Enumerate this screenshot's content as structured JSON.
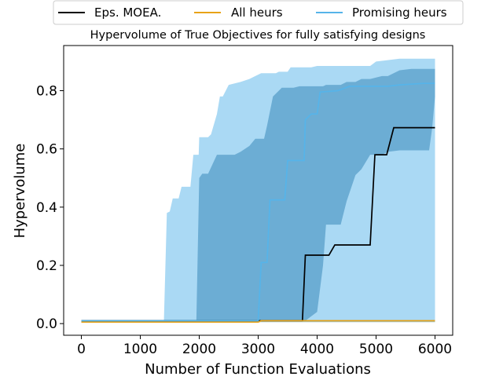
{
  "chart_data": {
    "type": "line",
    "title": "Hypervolume of True Objectives for fully satisfying designs",
    "xlabel": "Number of Function Evaluations",
    "ylabel": "Hypervolume",
    "xlim": [
      -300,
      6300
    ],
    "ylim": [
      -0.04,
      0.955
    ],
    "x_ticks": [
      0,
      1000,
      2000,
      3000,
      4000,
      5000,
      6000
    ],
    "y_ticks": [
      0.0,
      0.2,
      0.4,
      0.6,
      0.8
    ],
    "x_tick_labels": [
      "0",
      "1000",
      "2000",
      "3000",
      "4000",
      "5000",
      "6000"
    ],
    "y_tick_labels": [
      "0.0",
      "0.2",
      "0.4",
      "0.6",
      "0.8"
    ],
    "grid": false,
    "legend": {
      "placement": "top, outside plot"
    },
    "series": [
      {
        "name": "Eps. MOEA.",
        "color": "#000000",
        "band_color": "#2e6a93",
        "mean": [
          [
            0,
            0.01
          ],
          [
            3750,
            0.01
          ],
          [
            3800,
            0.235
          ],
          [
            4200,
            0.235
          ],
          [
            4300,
            0.27
          ],
          [
            4900,
            0.27
          ],
          [
            4980,
            0.58
          ],
          [
            5180,
            0.58
          ],
          [
            5300,
            0.673
          ],
          [
            6000,
            0.673
          ]
        ],
        "band": [
          [
            0,
            0.005,
            0.01
          ],
          [
            1950,
            0.005,
            0.01
          ],
          [
            2000,
            0.5,
            0.01
          ],
          [
            2050,
            0.515,
            0.01
          ],
          [
            2150,
            0.515,
            0.01
          ],
          [
            2300,
            0.58,
            0.01
          ],
          [
            2600,
            0.58,
            0.01
          ],
          [
            2700,
            0.59,
            0.01
          ],
          [
            2850,
            0.61,
            0.01
          ],
          [
            2950,
            0.635,
            0.01
          ],
          [
            3100,
            0.635,
            0.01
          ],
          [
            3150,
            0.68,
            0.01
          ],
          [
            3250,
            0.78,
            0.01
          ],
          [
            3350,
            0.8,
            0.01
          ],
          [
            3400,
            0.81,
            0.01
          ],
          [
            3600,
            0.81,
            0.01
          ],
          [
            3700,
            0.815,
            0.01
          ],
          [
            3800,
            0.815,
            0.01
          ],
          [
            4000,
            0.815,
            0.04
          ],
          [
            4100,
            0.815,
            0.2
          ],
          [
            4150,
            0.82,
            0.34
          ],
          [
            4400,
            0.82,
            0.34
          ],
          [
            4500,
            0.83,
            0.42
          ],
          [
            4650,
            0.83,
            0.51
          ],
          [
            4750,
            0.84,
            0.53
          ],
          [
            4900,
            0.84,
            0.58
          ],
          [
            5100,
            0.85,
            0.58
          ],
          [
            5200,
            0.85,
            0.59
          ],
          [
            5400,
            0.87,
            0.595
          ],
          [
            5600,
            0.875,
            0.595
          ],
          [
            5900,
            0.875,
            0.595
          ],
          [
            5950,
            0.875,
            0.67
          ],
          [
            6000,
            0.875,
            0.78
          ]
        ]
      },
      {
        "name": "All heurs",
        "color": "#e8a317",
        "band_color": "#b8a86a",
        "mean": [
          [
            0,
            0.005
          ],
          [
            3000,
            0.005
          ],
          [
            3050,
            0.01
          ],
          [
            6000,
            0.01
          ]
        ],
        "band": [
          [
            0,
            0.005,
            0.005
          ],
          [
            3000,
            0.005,
            0.005
          ],
          [
            3050,
            0.01,
            0.005
          ],
          [
            6000,
            0.01,
            0.005
          ]
        ]
      },
      {
        "name": "Promising heurs",
        "color": "#56b4e9",
        "band_color": "#56b4e9",
        "mean": [
          [
            0,
            0.01
          ],
          [
            3000,
            0.01
          ],
          [
            3050,
            0.21
          ],
          [
            3150,
            0.21
          ],
          [
            3200,
            0.425
          ],
          [
            3450,
            0.425
          ],
          [
            3500,
            0.56
          ],
          [
            3780,
            0.56
          ],
          [
            3800,
            0.7
          ],
          [
            3900,
            0.72
          ],
          [
            4000,
            0.72
          ],
          [
            4050,
            0.795
          ],
          [
            4350,
            0.8
          ],
          [
            4550,
            0.815
          ],
          [
            5200,
            0.815
          ],
          [
            5400,
            0.82
          ],
          [
            5800,
            0.825
          ],
          [
            6000,
            0.825
          ]
        ],
        "band": [
          [
            0,
            0.005,
            0.005
          ],
          [
            1400,
            0.005,
            0.005
          ],
          [
            1450,
            0.38,
            0.005
          ],
          [
            1500,
            0.385,
            0.005
          ],
          [
            1550,
            0.43,
            0.005
          ],
          [
            1650,
            0.43,
            0.005
          ],
          [
            1700,
            0.47,
            0.005
          ],
          [
            1850,
            0.47,
            0.005
          ],
          [
            1900,
            0.58,
            0.005
          ],
          [
            1990,
            0.58,
            0.005
          ],
          [
            2000,
            0.64,
            0.005
          ],
          [
            2150,
            0.64,
            0.005
          ],
          [
            2200,
            0.65,
            0.005
          ],
          [
            2300,
            0.72,
            0.005
          ],
          [
            2350,
            0.78,
            0.005
          ],
          [
            2400,
            0.78,
            0.005
          ],
          [
            2500,
            0.82,
            0.005
          ],
          [
            2700,
            0.83,
            0.005
          ],
          [
            2850,
            0.84,
            0.005
          ],
          [
            2950,
            0.85,
            0.005
          ],
          [
            3050,
            0.86,
            0.005
          ],
          [
            3300,
            0.86,
            0.005
          ],
          [
            3350,
            0.865,
            0.005
          ],
          [
            3500,
            0.865,
            0.005
          ],
          [
            3550,
            0.88,
            0.005
          ],
          [
            3900,
            0.88,
            0.005
          ],
          [
            4000,
            0.885,
            0.005
          ],
          [
            4900,
            0.885,
            0.005
          ],
          [
            5000,
            0.9,
            0.005
          ],
          [
            5400,
            0.91,
            0.005
          ],
          [
            6000,
            0.91,
            0.005
          ]
        ]
      }
    ]
  }
}
